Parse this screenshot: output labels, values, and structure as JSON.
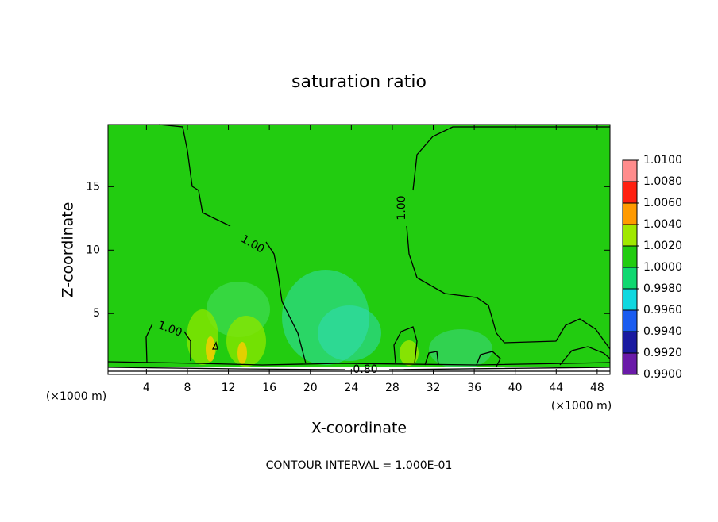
{
  "chart_data": {
    "type": "contour",
    "title": "saturation ratio",
    "x_label": "X-coordinate",
    "y_label": "Z-coordinate",
    "x_unit_left": "(×1000 m)",
    "x_unit_right": "(×1000 m)",
    "footer": "CONTOUR INTERVAL = 1.000E-01",
    "xlim": [
      0.25,
      49.25
    ],
    "ylim": [
      0.2,
      19.9
    ],
    "xticks": [
      4,
      8,
      12,
      16,
      20,
      24,
      28,
      32,
      36,
      40,
      44,
      48
    ],
    "yticks": [
      5,
      10,
      15
    ],
    "contour_labels": [
      {
        "value": 1,
        "label": "1.00"
      },
      {
        "value": 1,
        "label": "1.00"
      },
      {
        "value": 1,
        "label": "1.00"
      },
      {
        "value": 0.8,
        "label": "0.80"
      }
    ],
    "colorbar": {
      "levels": [
        {
          "value": 0.99,
          "label": "0.9900"
        },
        {
          "value": 0.992,
          "label": "0.9920"
        },
        {
          "value": 0.994,
          "label": "0.9940"
        },
        {
          "value": 0.996,
          "label": "0.9960"
        },
        {
          "value": 0.998,
          "label": "0.9980"
        },
        {
          "value": 1,
          "label": "1.0000"
        },
        {
          "value": 1.002,
          "label": "1.0020"
        },
        {
          "value": 1.004,
          "label": "1.0040"
        },
        {
          "value": 1.006,
          "label": "1.0060"
        },
        {
          "value": 1.008,
          "label": "1.0080"
        },
        {
          "value": 1.01,
          "label": "1.0100"
        }
      ],
      "colors": [
        "#6a1aa8",
        "#1a1aa0",
        "#1a5cf0",
        "#10d8e0",
        "#10d870",
        "#22cc10",
        "#a0e800",
        "#ff9a00",
        "#ff2010",
        "#ff8c8c"
      ]
    }
  }
}
